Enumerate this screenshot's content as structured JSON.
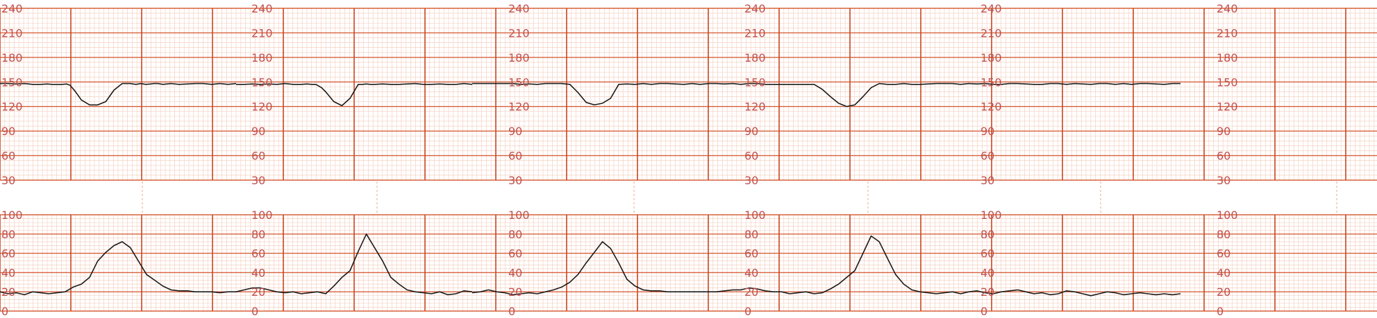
{
  "colors": {
    "minor_grid": "#f4c9b8",
    "major_grid": "#d9603a",
    "vertical_major": "#c8451f",
    "label": "#c0504d",
    "trace": "#1a1a1a",
    "gap_marker": "#f0a58c",
    "background": "#ffffff"
  },
  "chart_data": [
    {
      "type": "line",
      "name": "fhr-panel",
      "title": "",
      "xlabel": "",
      "ylabel": "",
      "ylim": [
        30,
        240
      ],
      "y_ticks": [
        30,
        60,
        90,
        120,
        150,
        180,
        210,
        240
      ],
      "x_unit": "minutes",
      "x_range": [
        0,
        29
      ],
      "grid": true,
      "series": [
        {
          "x": [
            0,
            1,
            2,
            3,
            4,
            5,
            5.8,
            6.4,
            7,
            7.6,
            8.2,
            8.6,
            9.2,
            10,
            11,
            12,
            13,
            14,
            15,
            16,
            16.7,
            17.3,
            17.9,
            18.5,
            18.9,
            19.4,
            20,
            21,
            22,
            23,
            24,
            25,
            26,
            27,
            28,
            29
          ],
          "values": [
            148,
            148,
            147.5,
            148,
            147,
            147,
            147.5,
            147,
            147,
            147,
            147.5,
            146,
            139,
            128,
            122,
            122,
            126,
            140,
            148,
            148,
            147,
            148,
            147,
            147.5,
            148,
            148,
            147,
            148,
            147,
            147.5,
            148,
            148,
            147,
            148,
            147,
            148
          ]
        },
        {
          "x": [
            0,
            1,
            2,
            3,
            4,
            5,
            6,
            7,
            8,
            8.7,
            9.3,
            9.8,
            10.5,
            11,
            12,
            13,
            14,
            15,
            15.5,
            16,
            16.5,
            17,
            18,
            19,
            20,
            21,
            22,
            23,
            24,
            25,
            26,
            27,
            28,
            29
          ],
          "values": [
            147,
            147,
            147.5,
            147,
            147.5,
            147,
            148,
            147,
            147,
            147.5,
            147,
            147,
            143,
            138,
            126,
            121,
            130,
            147,
            147,
            147.5,
            147,
            147,
            147.5,
            147,
            147,
            147.5,
            148,
            147,
            147,
            147.5,
            147,
            147,
            148,
            147
          ]
        },
        {
          "x": [
            0,
            1,
            2,
            3,
            4,
            5,
            6,
            7,
            8,
            9,
            10,
            11,
            12,
            13,
            14,
            15,
            16,
            17,
            18,
            19,
            20,
            21,
            22,
            23,
            24,
            25,
            26,
            27,
            28,
            29
          ],
          "values": [
            148,
            148,
            148,
            148,
            148,
            148,
            147,
            147.5,
            147,
            148,
            148,
            148,
            147,
            137,
            125,
            122,
            124,
            130,
            147,
            147.5,
            147,
            148,
            147,
            148,
            148,
            147.5,
            147,
            148,
            147,
            148
          ]
        },
        {
          "x": [
            0,
            1,
            2,
            3,
            4,
            5,
            6,
            7,
            8,
            9,
            10,
            11,
            12,
            13,
            14,
            15,
            16,
            17,
            18,
            19,
            20,
            21,
            22,
            23,
            24,
            25,
            26,
            27,
            28,
            29
          ],
          "values": [
            148,
            148,
            147.5,
            148,
            147,
            148,
            148,
            147,
            147,
            147,
            147,
            147,
            147,
            147,
            141,
            132,
            124,
            120,
            122,
            132,
            143,
            148,
            147,
            147,
            148,
            147,
            147,
            147.5,
            148,
            148
          ]
        },
        {
          "x": [
            0,
            1,
            2,
            3,
            4,
            5,
            6,
            7,
            8,
            9,
            10,
            11,
            12,
            13,
            14,
            15,
            16,
            17,
            18,
            19,
            20,
            21,
            22,
            23,
            24,
            25,
            26,
            27,
            28,
            29
          ],
          "values": [
            148,
            148,
            147,
            148,
            147.5,
            148,
            147,
            147,
            148,
            148,
            147.5,
            147,
            147,
            148,
            148,
            147,
            148,
            147.5,
            147,
            148,
            148,
            147,
            148,
            147,
            148,
            148,
            147.5,
            147,
            148,
            148
          ]
        }
      ]
    },
    {
      "type": "line",
      "name": "uc-panel",
      "title": "",
      "xlabel": "",
      "ylabel": "",
      "ylim": [
        0,
        100
      ],
      "y_ticks": [
        0,
        20,
        40,
        60,
        80,
        100
      ],
      "x_unit": "minutes",
      "x_range": [
        0,
        29
      ],
      "grid": true,
      "series": [
        {
          "x": [
            0,
            1,
            2,
            3,
            4,
            5,
            6,
            7,
            8,
            9,
            10,
            11,
            12,
            13,
            14,
            15,
            16,
            17,
            18,
            19,
            20,
            21,
            22,
            23,
            24,
            25,
            26,
            27,
            28,
            29
          ],
          "values": [
            20,
            18,
            19,
            17,
            20,
            19,
            18,
            19,
            20,
            25,
            28,
            35,
            52,
            61,
            68,
            72,
            66,
            52,
            38,
            32,
            26,
            22,
            21,
            21,
            20,
            20,
            20,
            19,
            20,
            20
          ]
        },
        {
          "x": [
            0,
            1,
            2,
            3,
            4,
            5,
            6,
            7,
            8,
            9,
            10,
            11,
            12,
            13,
            14,
            15,
            16,
            17,
            18,
            19,
            20,
            21,
            22,
            23,
            24,
            25,
            26,
            27,
            28,
            29
          ],
          "values": [
            20,
            22,
            24,
            24,
            22,
            20,
            19,
            20,
            18,
            19,
            20,
            18,
            26,
            35,
            42,
            62,
            80,
            66,
            52,
            35,
            28,
            22,
            20,
            19,
            18,
            20,
            17,
            18,
            21,
            20
          ]
        },
        {
          "x": [
            0,
            1,
            2,
            3,
            4,
            5,
            6,
            7,
            8,
            9,
            10,
            11,
            12,
            13,
            14,
            15,
            16,
            17,
            18,
            19,
            20,
            21,
            22,
            23,
            24,
            25,
            26,
            27,
            28,
            29
          ],
          "values": [
            19,
            20,
            22,
            20,
            19,
            17,
            18,
            19,
            18,
            20,
            22,
            25,
            30,
            38,
            50,
            61,
            72,
            65,
            50,
            33,
            26,
            22,
            21,
            21,
            20,
            20,
            20,
            20,
            20,
            20
          ]
        },
        {
          "x": [
            0,
            1,
            2,
            3,
            4,
            5,
            6,
            7,
            8,
            9,
            10,
            11,
            12,
            13,
            14,
            15,
            16,
            17,
            18,
            19,
            20,
            21,
            22,
            23,
            24,
            25,
            26,
            27,
            28,
            29
          ],
          "values": [
            20,
            20,
            21,
            22,
            22,
            24,
            23,
            21,
            20,
            20,
            18,
            19,
            20,
            18,
            19,
            23,
            28,
            35,
            42,
            60,
            78,
            72,
            55,
            38,
            28,
            22,
            20,
            19,
            18,
            19
          ]
        },
        {
          "x": [
            0,
            1,
            2,
            3,
            4,
            5,
            6,
            7,
            8,
            9,
            10,
            11,
            12,
            13,
            14,
            15,
            16,
            17,
            18,
            19,
            20,
            21,
            22,
            23,
            24,
            25,
            26,
            27,
            28,
            29
          ],
          "values": [
            19,
            20,
            18,
            20,
            21,
            19,
            18,
            20,
            21,
            22,
            20,
            18,
            19,
            17,
            18,
            21,
            20,
            18,
            16,
            18,
            20,
            19,
            17,
            18,
            19,
            18,
            17,
            18,
            17,
            18
          ]
        }
      ]
    }
  ]
}
